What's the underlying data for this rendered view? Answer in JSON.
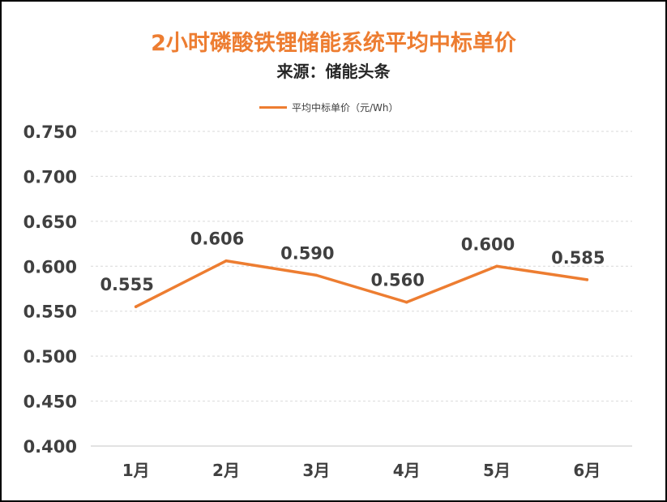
{
  "chart_data": {
    "type": "line",
    "title": "2小时磷酸铁锂储能系统平均中标单价",
    "subtitle": "来源：储能头条",
    "categories": [
      "1月",
      "2月",
      "3月",
      "4月",
      "5月",
      "6月"
    ],
    "series": [
      {
        "name": "平均中标单价（元/Wh）",
        "values": [
          0.555,
          0.606,
          0.59,
          0.56,
          0.6,
          0.585
        ],
        "color": "#ED7D31"
      }
    ],
    "data_labels": [
      "0.555",
      "0.606",
      "0.590",
      "0.560",
      "0.600",
      "0.585"
    ],
    "y_ticks": [
      "0.400",
      "0.450",
      "0.500",
      "0.550",
      "0.600",
      "0.650",
      "0.700",
      "0.750"
    ],
    "ylim": [
      0.4,
      0.75
    ],
    "grid": true,
    "legend_position": "top",
    "colors": {
      "title": "#ED7D31",
      "line": "#ED7D31",
      "grid": "#D9D9D9",
      "text": "#404040"
    }
  }
}
